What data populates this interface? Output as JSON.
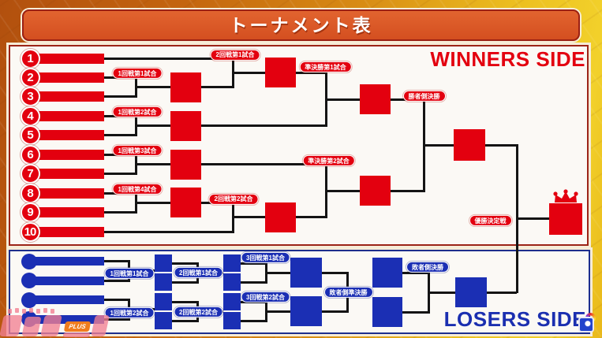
{
  "banner": {
    "title": "トーナメント表"
  },
  "winners": {
    "side_label": "WINNERS SIDE",
    "seeds": [
      "1",
      "2",
      "3",
      "4",
      "5",
      "6",
      "7",
      "8",
      "9",
      "10"
    ],
    "match_labels": [
      {
        "id": "w-r1m1",
        "text": "1回戦第1試合"
      },
      {
        "id": "w-r1m2",
        "text": "1回戦第2試合"
      },
      {
        "id": "w-r1m3",
        "text": "1回戦第3試合"
      },
      {
        "id": "w-r1m4",
        "text": "1回戦第4試合"
      },
      {
        "id": "w-r2m1",
        "text": "2回戦第1試合"
      },
      {
        "id": "w-r2m2",
        "text": "2回戦第2試合"
      },
      {
        "id": "w-sf1",
        "text": "準決勝第1試合"
      },
      {
        "id": "w-sf2",
        "text": "準決勝第2試合"
      },
      {
        "id": "w-final",
        "text": "勝者側決勝"
      },
      {
        "id": "grand-final",
        "text": "優勝決定戦"
      }
    ]
  },
  "losers": {
    "side_label": "LOSERS SIDE",
    "match_labels": [
      {
        "id": "l-r1m1",
        "text": "1回戦第1試合"
      },
      {
        "id": "l-r1m2",
        "text": "1回戦第2試合"
      },
      {
        "id": "l-r2m1",
        "text": "2回戦第1試合"
      },
      {
        "id": "l-r2m2",
        "text": "2回戦第2試合"
      },
      {
        "id": "l-r3m1",
        "text": "3回戦第1試合"
      },
      {
        "id": "l-r3m2",
        "text": "3回戦第2試合"
      },
      {
        "id": "l-sf",
        "text": "敗者側準決勝"
      },
      {
        "id": "l-final",
        "text": "敗者側決勝"
      }
    ]
  },
  "watermark": {
    "badge_label": "PLUS"
  },
  "colors": {
    "winner_red": "#e3000f",
    "loser_blue": "#1b2fb4",
    "winners_border": "#9c2418",
    "losers_border": "#1d2e8d",
    "banner_orange": "#d44f20",
    "line_black": "#141414"
  }
}
